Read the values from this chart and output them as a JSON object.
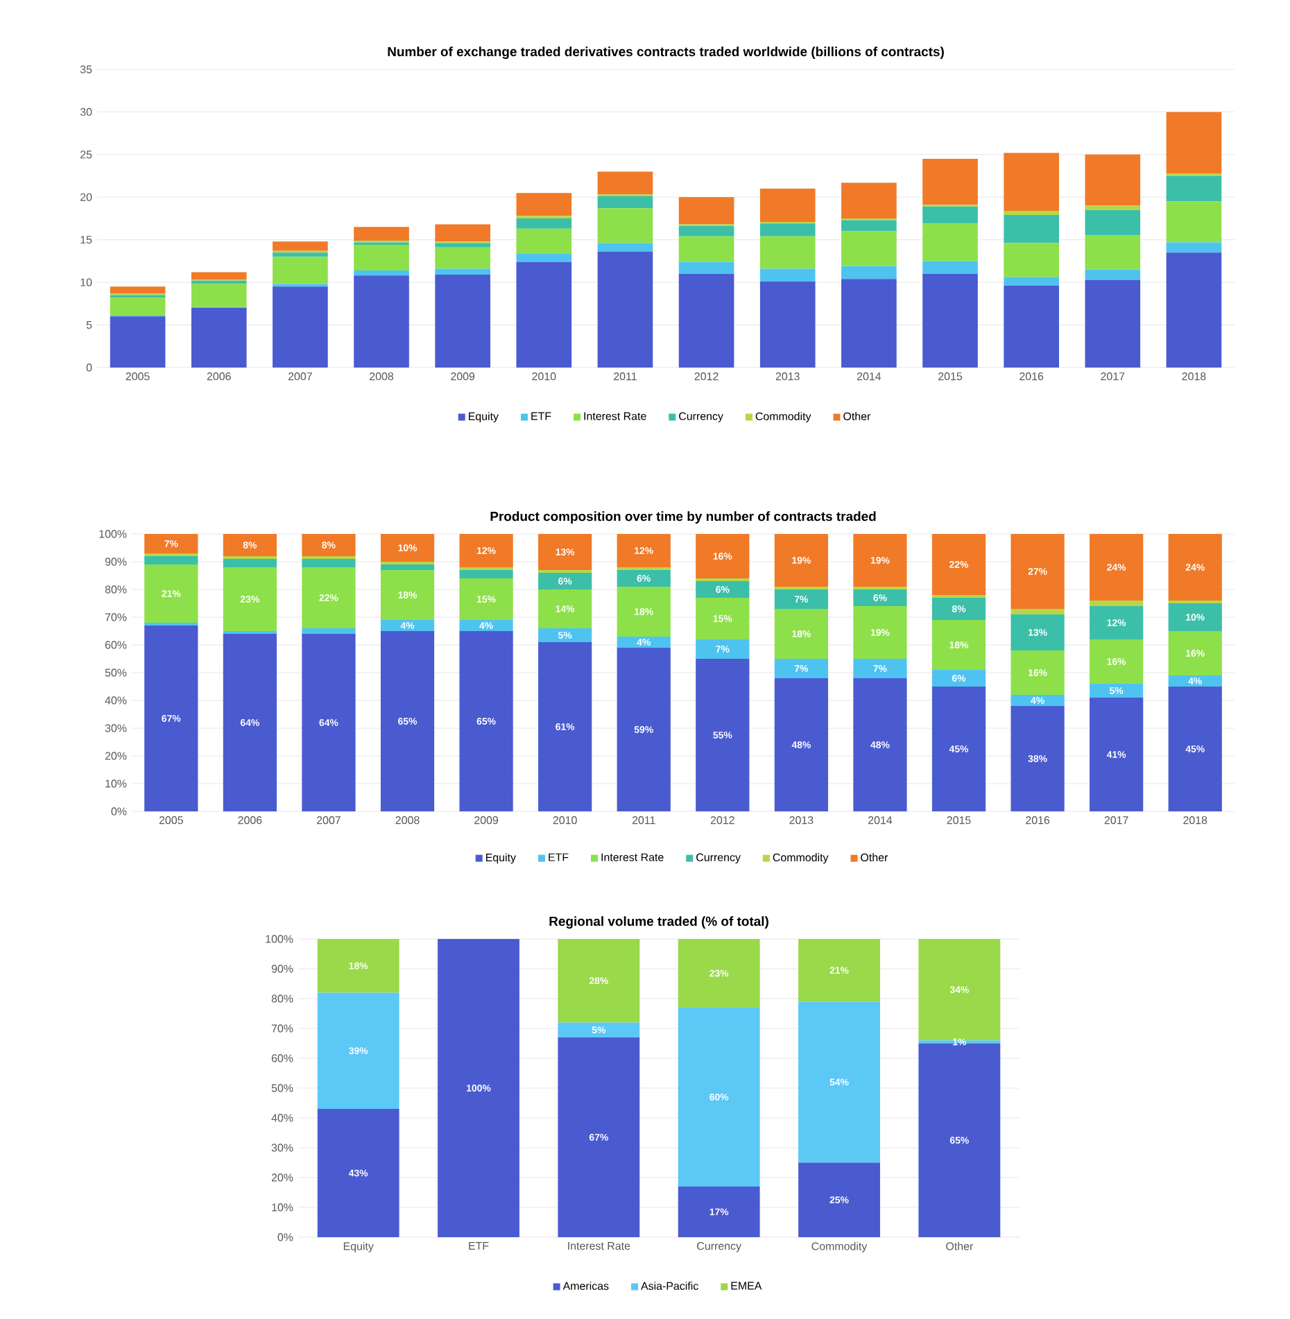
{
  "chart_data": [
    {
      "type": "bar",
      "stacked": true,
      "title": "Number of exchange traded derivatives contracts traded worldwide (billions of contracts)",
      "categories": [
        "2005",
        "2006",
        "2007",
        "2008",
        "2009",
        "2010",
        "2011",
        "2012",
        "2013",
        "2014",
        "2015",
        "2016",
        "2017",
        "2018"
      ],
      "series": [
        {
          "name": "Equity",
          "color": "#4a5bd0",
          "values": [
            6.0,
            7.0,
            9.5,
            10.8,
            10.9,
            12.4,
            13.6,
            11.0,
            10.1,
            10.4,
            11.0,
            9.6,
            10.3,
            13.5
          ]
        },
        {
          "name": "ETF",
          "color": "#4fc3f0",
          "values": [
            0.1,
            0.1,
            0.3,
            0.6,
            0.7,
            1.0,
            1.0,
            1.4,
            1.5,
            1.5,
            1.5,
            1.0,
            1.2,
            1.2
          ]
        },
        {
          "name": "Interest Rate",
          "color": "#8ee04a",
          "values": [
            2.1,
            2.7,
            3.2,
            3.0,
            2.5,
            2.9,
            4.1,
            3.0,
            3.8,
            4.1,
            4.4,
            4.0,
            4.0,
            4.8
          ]
        },
        {
          "name": "Currency",
          "color": "#3cbfa8",
          "values": [
            0.3,
            0.4,
            0.5,
            0.3,
            0.5,
            1.2,
            1.4,
            1.2,
            1.5,
            1.3,
            2.0,
            3.3,
            3.0,
            3.0
          ]
        },
        {
          "name": "Commodity",
          "color": "#b8d64a",
          "values": [
            0.2,
            0.1,
            0.2,
            0.2,
            0.2,
            0.3,
            0.2,
            0.2,
            0.2,
            0.2,
            0.2,
            0.5,
            0.5,
            0.3
          ]
        },
        {
          "name": "Other",
          "color": "#f07a28",
          "values": [
            0.8,
            0.9,
            1.1,
            1.6,
            2.0,
            2.7,
            2.7,
            3.2,
            3.9,
            4.2,
            5.4,
            6.8,
            6.0,
            7.2
          ]
        }
      ],
      "ylim": [
        0,
        35
      ],
      "yticks": [
        0,
        5,
        10,
        15,
        20,
        25,
        30,
        35
      ],
      "grid": "y",
      "legend": "bottom"
    },
    {
      "type": "bar",
      "stacked": true,
      "title": "Product composition over time by number of contracts traded",
      "categories": [
        "2005",
        "2006",
        "2007",
        "2008",
        "2009",
        "2010",
        "2011",
        "2012",
        "2013",
        "2014",
        "2015",
        "2016",
        "2017",
        "2018"
      ],
      "series": [
        {
          "name": "Equity",
          "color": "#4a5bd0",
          "values": [
            67,
            64,
            64,
            65,
            65,
            61,
            59,
            55,
            48,
            48,
            45,
            38,
            41,
            45
          ],
          "value_labels": [
            "67%",
            "64%",
            "64%",
            "65%",
            "65%",
            "61%",
            "59%",
            "55%",
            "48%",
            "48%",
            "45%",
            "38%",
            "41%",
            "45%"
          ]
        },
        {
          "name": "ETF",
          "color": "#4fc3f0",
          "values": [
            1,
            1,
            2,
            4,
            4,
            5,
            4,
            7,
            7,
            7,
            6,
            4,
            5,
            4
          ],
          "value_labels": [
            null,
            null,
            null,
            "4%",
            "4%",
            "5%",
            "4%",
            "7%",
            "7%",
            "7%",
            "6%",
            "4%",
            "5%",
            "4%"
          ]
        },
        {
          "name": "Interest Rate",
          "color": "#8ee04a",
          "values": [
            21,
            23,
            22,
            18,
            15,
            14,
            18,
            15,
            18,
            19,
            18,
            16,
            16,
            16
          ],
          "value_labels": [
            "21%",
            "23%",
            "22%",
            "18%",
            "15%",
            "14%",
            "18%",
            "15%",
            "18%",
            "19%",
            "18%",
            "16%",
            "16%",
            "16%"
          ]
        },
        {
          "name": "Currency",
          "color": "#3cbfa8",
          "values": [
            3,
            3,
            3,
            2,
            3,
            6,
            6,
            6,
            7,
            6,
            8,
            13,
            12,
            10
          ],
          "value_labels": [
            null,
            null,
            null,
            null,
            null,
            "6%",
            "6%",
            "6%",
            "7%",
            "6%",
            "8%",
            "13%",
            "12%",
            "10%"
          ]
        },
        {
          "name": "Commodity",
          "color": "#b8d64a",
          "values": [
            1,
            1,
            1,
            1,
            1,
            1,
            1,
            1,
            1,
            1,
            1,
            2,
            2,
            1
          ]
        },
        {
          "name": "Other",
          "color": "#f07a28",
          "values": [
            7,
            8,
            8,
            10,
            12,
            13,
            12,
            16,
            19,
            19,
            22,
            27,
            24,
            24
          ],
          "value_labels": [
            "7%",
            "8%",
            "8%",
            "10%",
            "12%",
            "13%",
            "12%",
            "16%",
            "19%",
            "19%",
            "22%",
            "27%",
            "24%",
            "24%"
          ]
        }
      ],
      "ylim": [
        0,
        100
      ],
      "yticks": [
        {
          "value": 0,
          "label": "0%"
        },
        {
          "value": 10,
          "label": "10%"
        },
        {
          "value": 20,
          "label": "20%"
        },
        {
          "value": 30,
          "label": "30%"
        },
        {
          "value": 40,
          "label": "40%"
        },
        {
          "value": 50,
          "label": "50%"
        },
        {
          "value": 60,
          "label": "60%"
        },
        {
          "value": 70,
          "label": "70%"
        },
        {
          "value": 80,
          "label": "80%"
        },
        {
          "value": 90,
          "label": "90%"
        },
        {
          "value": 100,
          "label": "100%"
        }
      ],
      "grid": "y",
      "legend": "bottom"
    },
    {
      "type": "bar",
      "stacked": true,
      "title": "Regional volume traded (% of total)",
      "categories": [
        "Equity",
        "ETF",
        "Interest Rate",
        "Currency",
        "Commodity",
        "Other"
      ],
      "series": [
        {
          "name": "Americas",
          "color": "#4a5bd0",
          "values": [
            43,
            100,
            67,
            17,
            25,
            65
          ],
          "value_labels": [
            "43%",
            "100%",
            "67%",
            "17%",
            "25%",
            "65%"
          ]
        },
        {
          "name": "Asia-Pacific",
          "color": "#5bc8f5",
          "values": [
            39,
            0,
            5,
            60,
            54,
            1
          ],
          "value_labels": [
            "39%",
            null,
            "5%",
            "60%",
            "54%",
            "1%"
          ]
        },
        {
          "name": "EMEA",
          "color": "#9ad94a",
          "values": [
            18,
            0,
            28,
            23,
            21,
            34
          ],
          "value_labels": [
            "18%",
            null,
            "28%",
            "23%",
            "21%",
            "34%"
          ]
        }
      ],
      "ylim": [
        0,
        100
      ],
      "yticks": [
        {
          "value": 0,
          "label": "0%"
        },
        {
          "value": 10,
          "label": "10%"
        },
        {
          "value": 20,
          "label": "20%"
        },
        {
          "value": 30,
          "label": "30%"
        },
        {
          "value": 40,
          "label": "40%"
        },
        {
          "value": 50,
          "label": "50%"
        },
        {
          "value": 60,
          "label": "60%"
        },
        {
          "value": 70,
          "label": "70%"
        },
        {
          "value": 80,
          "label": "80%"
        },
        {
          "value": 90,
          "label": "90%"
        },
        {
          "value": 100,
          "label": "100%"
        }
      ],
      "grid": "y",
      "legend": "bottom"
    }
  ]
}
